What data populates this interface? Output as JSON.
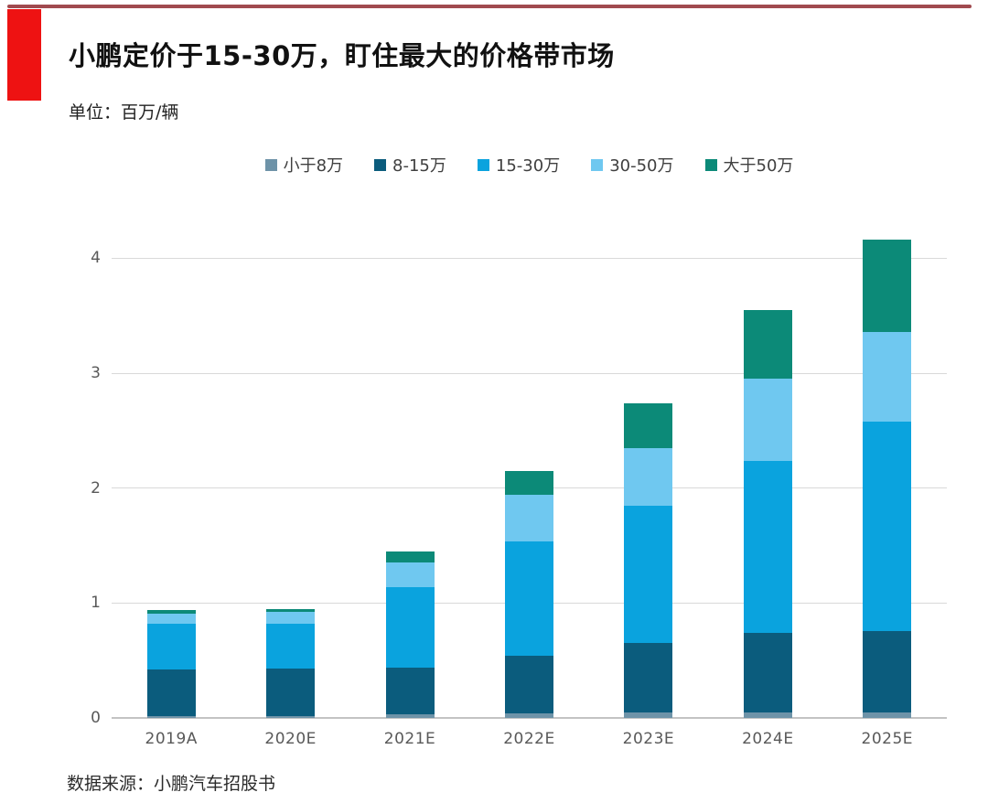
{
  "page": {
    "title": "小鹏定价于15-30万，盯住最大的价格带市场",
    "unit_label": "单位：百万/辆",
    "source": "数据来源：小鹏汽车招股书"
  },
  "colors": {
    "accent_red": "#ee1212",
    "top_line": "#a04a4f",
    "grid": "#d9d9d9",
    "axis_text": "#595959"
  },
  "chart_data": {
    "type": "bar",
    "stacked": true,
    "title": "小鹏定价于15-30万，盯住最大的价格带市场",
    "unit": "百万/辆",
    "xlabel": "",
    "ylabel": "",
    "ylim": [
      0,
      4.33
    ],
    "yticks": [
      0,
      1,
      2,
      3,
      4
    ],
    "grid": true,
    "legend_position": "top-center",
    "categories": [
      "2019A",
      "2020E",
      "2021E",
      "2022E",
      "2023E",
      "2024E",
      "2025E"
    ],
    "series": [
      {
        "name": "小于8万",
        "color": "#6e93a8",
        "values": [
          0.02,
          0.02,
          0.03,
          0.04,
          0.05,
          0.05,
          0.05
        ]
      },
      {
        "name": "8-15万",
        "color": "#0b5c7d",
        "values": [
          0.4,
          0.41,
          0.41,
          0.5,
          0.6,
          0.69,
          0.71
        ]
      },
      {
        "name": "15-30万",
        "color": "#0aa3de",
        "values": [
          0.4,
          0.39,
          0.7,
          1.0,
          1.2,
          1.5,
          1.82
        ]
      },
      {
        "name": "30-50万",
        "color": "#6fc8f0",
        "values": [
          0.09,
          0.1,
          0.21,
          0.4,
          0.5,
          0.71,
          0.78
        ]
      },
      {
        "name": "大于50万",
        "color": "#0c8a78",
        "values": [
          0.03,
          0.03,
          0.1,
          0.21,
          0.39,
          0.6,
          0.8
        ]
      }
    ],
    "totals": [
      0.94,
      0.95,
      1.45,
      2.15,
      2.74,
      3.55,
      4.16
    ]
  }
}
